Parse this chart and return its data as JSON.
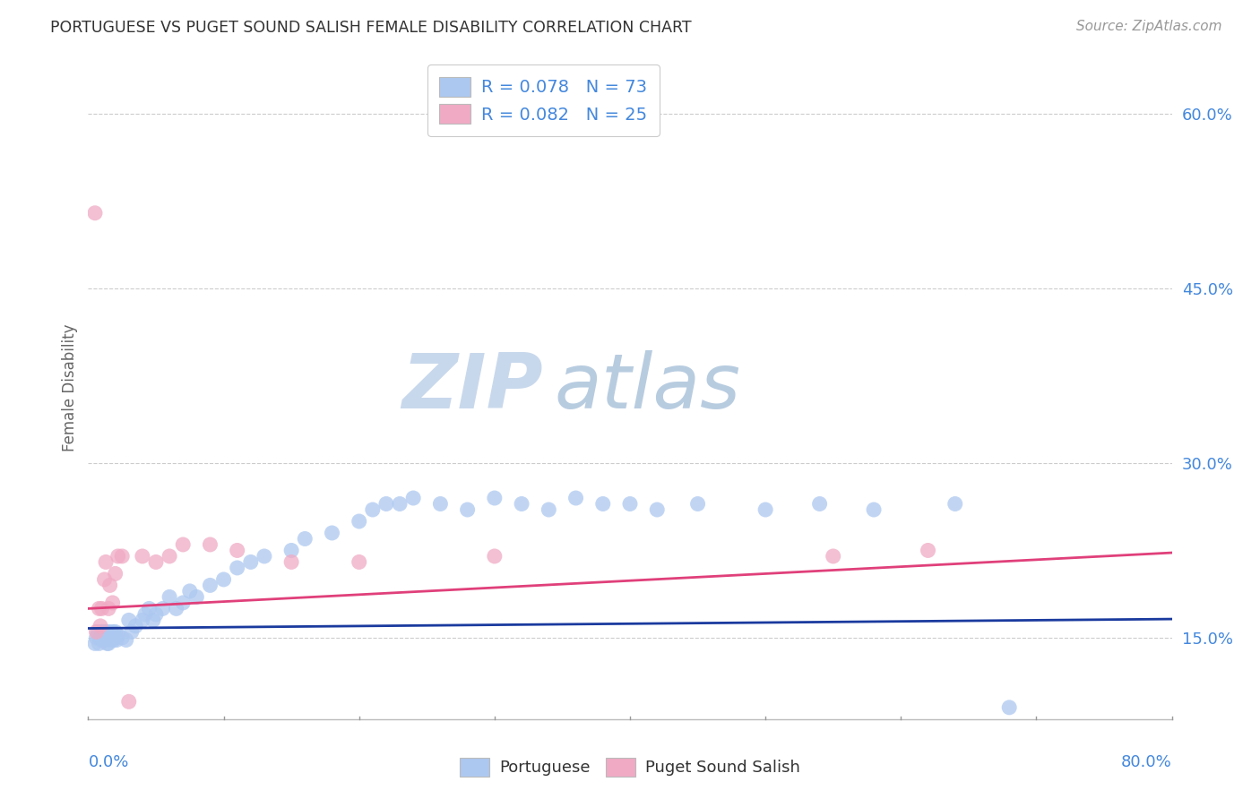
{
  "title": "PORTUGUESE VS PUGET SOUND SALISH FEMALE DISABILITY CORRELATION CHART",
  "source": "Source: ZipAtlas.com",
  "ylabel": "Female Disability",
  "yticks": [
    0.15,
    0.3,
    0.45,
    0.6
  ],
  "ytick_labels": [
    "15.0%",
    "30.0%",
    "45.0%",
    "60.0%"
  ],
  "xlim": [
    0.0,
    0.8
  ],
  "ylim": [
    0.08,
    0.65
  ],
  "watermark": "ZIPatlas",
  "portuguese_color": "#adc8f0",
  "puget_color": "#f0aac4",
  "line_portuguese_color": "#1a3a9e",
  "line_puget_color": "#e0407a",
  "background_color": "#ffffff",
  "grid_color": "#cccccc",
  "title_color": "#333333",
  "axis_label_color": "#4488dd",
  "port_slope": 0.01,
  "port_intercept": 0.158,
  "pug_slope": 0.06,
  "pug_intercept": 0.175,
  "portuguese_x": [
    0.005,
    0.006,
    0.007,
    0.008,
    0.009,
    0.01,
    0.01,
    0.01,
    0.011,
    0.011,
    0.012,
    0.012,
    0.013,
    0.013,
    0.014,
    0.014,
    0.015,
    0.015,
    0.015,
    0.016,
    0.016,
    0.017,
    0.018,
    0.018,
    0.019,
    0.02,
    0.02,
    0.021,
    0.022,
    0.025,
    0.028,
    0.03,
    0.032,
    0.035,
    0.04,
    0.042,
    0.045,
    0.048,
    0.05,
    0.055,
    0.06,
    0.065,
    0.07,
    0.075,
    0.08,
    0.09,
    0.1,
    0.11,
    0.12,
    0.13,
    0.15,
    0.16,
    0.18,
    0.2,
    0.21,
    0.22,
    0.23,
    0.24,
    0.26,
    0.28,
    0.3,
    0.32,
    0.34,
    0.36,
    0.38,
    0.4,
    0.42,
    0.45,
    0.5,
    0.54,
    0.58,
    0.64,
    0.68
  ],
  "portuguese_y": [
    0.145,
    0.15,
    0.155,
    0.145,
    0.15,
    0.155,
    0.148,
    0.152,
    0.155,
    0.148,
    0.15,
    0.153,
    0.148,
    0.155,
    0.15,
    0.145,
    0.15,
    0.155,
    0.145,
    0.15,
    0.152,
    0.148,
    0.155,
    0.152,
    0.148,
    0.155,
    0.15,
    0.148,
    0.152,
    0.15,
    0.148,
    0.165,
    0.155,
    0.16,
    0.165,
    0.17,
    0.175,
    0.165,
    0.17,
    0.175,
    0.185,
    0.175,
    0.18,
    0.19,
    0.185,
    0.195,
    0.2,
    0.21,
    0.215,
    0.22,
    0.225,
    0.235,
    0.24,
    0.25,
    0.26,
    0.265,
    0.265,
    0.27,
    0.265,
    0.26,
    0.27,
    0.265,
    0.26,
    0.27,
    0.265,
    0.265,
    0.26,
    0.265,
    0.26,
    0.265,
    0.26,
    0.265,
    0.09
  ],
  "puget_x": [
    0.005,
    0.006,
    0.008,
    0.009,
    0.01,
    0.012,
    0.013,
    0.015,
    0.016,
    0.018,
    0.02,
    0.022,
    0.025,
    0.03,
    0.04,
    0.05,
    0.06,
    0.07,
    0.09,
    0.11,
    0.15,
    0.2,
    0.3,
    0.55,
    0.62
  ],
  "puget_y": [
    0.515,
    0.155,
    0.175,
    0.16,
    0.175,
    0.2,
    0.215,
    0.175,
    0.195,
    0.18,
    0.205,
    0.22,
    0.22,
    0.095,
    0.22,
    0.215,
    0.22,
    0.23,
    0.23,
    0.225,
    0.215,
    0.215,
    0.22,
    0.22,
    0.225
  ]
}
